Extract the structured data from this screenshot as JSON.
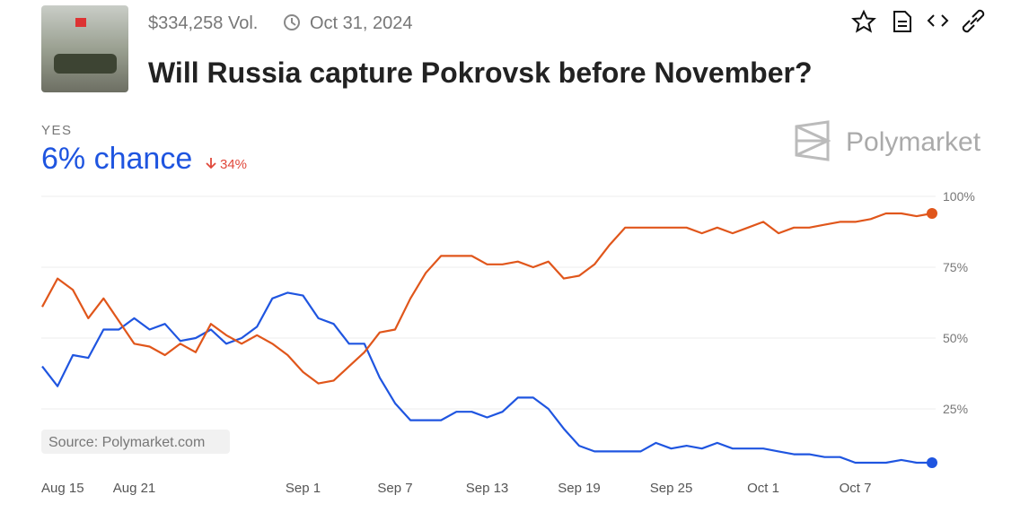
{
  "header": {
    "volume": "$334,258 Vol.",
    "date": "Oct 31, 2024",
    "title": "Will Russia capture Pokrovsk before November?",
    "outcome": "YES",
    "chance": "6% chance",
    "change": "34%",
    "brand": "Polymarket",
    "source": "Source: Polymarket.com"
  },
  "chart_data": {
    "type": "line",
    "x": [
      "Aug 15",
      "Aug 16",
      "Aug 17",
      "Aug 18",
      "Aug 19",
      "Aug 20",
      "Aug 21",
      "Aug 22",
      "Aug 23",
      "Aug 24",
      "Aug 25",
      "Aug 26",
      "Aug 27",
      "Aug 28",
      "Aug 29",
      "Aug 30",
      "Aug 31",
      "Sep 1",
      "Sep 2",
      "Sep 3",
      "Sep 4",
      "Sep 5",
      "Sep 6",
      "Sep 7",
      "Sep 8",
      "Sep 9",
      "Sep 10",
      "Sep 11",
      "Sep 12",
      "Sep 13",
      "Sep 14",
      "Sep 15",
      "Sep 16",
      "Sep 17",
      "Sep 18",
      "Sep 19",
      "Sep 20",
      "Sep 21",
      "Sep 22",
      "Sep 23",
      "Sep 24",
      "Sep 25",
      "Sep 26",
      "Sep 27",
      "Sep 28",
      "Sep 29",
      "Sep 30",
      "Oct 1",
      "Oct 2",
      "Oct 3",
      "Oct 4",
      "Oct 5",
      "Oct 6",
      "Oct 7",
      "Oct 8",
      "Oct 9",
      "Oct 10",
      "Oct 11",
      "Oct 12"
    ],
    "series": [
      {
        "color": "#1f55e0",
        "values": [
          40,
          33,
          44,
          43,
          53,
          53,
          57,
          53,
          55,
          49,
          50,
          53,
          48,
          50,
          54,
          64,
          66,
          65,
          57,
          55,
          48,
          48,
          36,
          27,
          21,
          21,
          21,
          24,
          24,
          22,
          24,
          29,
          29,
          25,
          18,
          12,
          10,
          10,
          10,
          10,
          13,
          11,
          12,
          11,
          13,
          11,
          11,
          11,
          10,
          9,
          9,
          8,
          8,
          6,
          6,
          6,
          7,
          6,
          6
        ]
      },
      {
        "color": "#e0561b",
        "values": [
          61,
          71,
          67,
          57,
          64,
          56,
          48,
          47,
          44,
          48,
          45,
          55,
          51,
          48,
          51,
          48,
          44,
          38,
          34,
          35,
          40,
          45,
          52,
          53,
          64,
          73,
          79,
          79,
          79,
          76,
          76,
          77,
          75,
          77,
          71,
          72,
          76,
          83,
          89,
          89,
          89,
          89,
          89,
          87,
          89,
          87,
          89,
          91,
          87,
          89,
          89,
          90,
          91,
          91,
          92,
          94,
          94,
          93,
          94
        ]
      }
    ],
    "xticks": [
      "Aug 15",
      "Aug 21",
      "Sep 1",
      "Sep 7",
      "Sep 13",
      "Sep 19",
      "Sep 25",
      "Oct 1",
      "Oct 7"
    ],
    "ylim": [
      0,
      100
    ],
    "yticks": [
      {
        "value": 25,
        "label": "25%"
      },
      {
        "value": 50,
        "label": "50%"
      },
      {
        "value": 75,
        "label": "75%"
      },
      {
        "value": 100,
        "label": "100%"
      }
    ],
    "grid": true
  }
}
